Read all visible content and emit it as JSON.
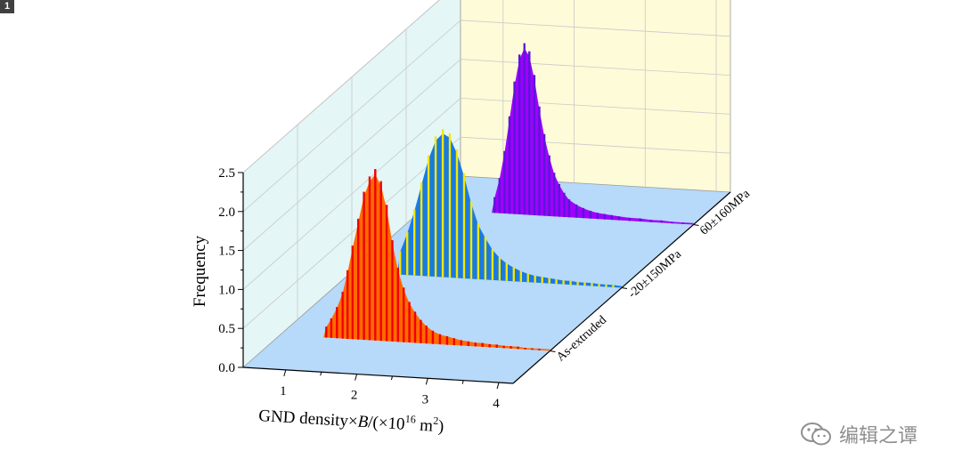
{
  "badge": "1",
  "watermark": {
    "text": "编辑之谭",
    "icon": "wechat-icon"
  },
  "chart_data": {
    "type": "3d-waterfall-histogram",
    "title": "",
    "xlabel": {
      "main": "GND density×",
      "italic": "B",
      "mid": "/(×10",
      "sup1": "16",
      "after": " m",
      "sup2": "2",
      "close": ")"
    },
    "ylabel": "Frequency",
    "xlim": [
      0.4,
      4.2
    ],
    "ylim": [
      0,
      2.5
    ],
    "x_ticks": [
      "1",
      "2",
      "3",
      "4"
    ],
    "y_ticks": [
      "0.0",
      "0.5",
      "1.0",
      "1.5",
      "2.0",
      "2.5"
    ],
    "depth_labels": [
      "As-extruded",
      "-20±150MPa",
      "60±160MPa"
    ],
    "colors": {
      "wall_back": "#fdfbd8",
      "wall_left": "#e4f6f6",
      "floor": "#b7d9fa",
      "grid": "#c9c9c9"
    },
    "series": [
      {
        "name": "As-extruded",
        "bar_color": "#f00000",
        "fill_color": "#ff6a00",
        "bars": [
          {
            "x": 1.05,
            "y": 0.14
          },
          {
            "x": 1.12,
            "y": 0.25
          },
          {
            "x": 1.2,
            "y": 0.4
          },
          {
            "x": 1.28,
            "y": 0.6
          },
          {
            "x": 1.35,
            "y": 0.88
          },
          {
            "x": 1.42,
            "y": 1.2
          },
          {
            "x": 1.5,
            "y": 1.55
          },
          {
            "x": 1.58,
            "y": 1.9
          },
          {
            "x": 1.66,
            "y": 2.1
          },
          {
            "x": 1.74,
            "y": 2.2
          },
          {
            "x": 1.82,
            "y": 2.05
          },
          {
            "x": 1.9,
            "y": 1.75
          },
          {
            "x": 1.98,
            "y": 1.3
          },
          {
            "x": 2.06,
            "y": 0.95
          },
          {
            "x": 2.14,
            "y": 0.7
          },
          {
            "x": 2.22,
            "y": 0.52
          },
          {
            "x": 2.3,
            "y": 0.4
          },
          {
            "x": 2.38,
            "y": 0.3
          },
          {
            "x": 2.46,
            "y": 0.23
          },
          {
            "x": 2.55,
            "y": 0.17
          },
          {
            "x": 2.65,
            "y": 0.13
          },
          {
            "x": 2.75,
            "y": 0.11
          },
          {
            "x": 2.85,
            "y": 0.09
          },
          {
            "x": 2.95,
            "y": 0.07
          },
          {
            "x": 3.05,
            "y": 0.06
          },
          {
            "x": 3.15,
            "y": 0.05
          },
          {
            "x": 3.25,
            "y": 0.05
          },
          {
            "x": 3.35,
            "y": 0.04
          },
          {
            "x": 3.45,
            "y": 0.04
          },
          {
            "x": 3.55,
            "y": 0.03
          },
          {
            "x": 3.65,
            "y": 0.03
          },
          {
            "x": 3.75,
            "y": 0.03
          },
          {
            "x": 3.85,
            "y": 0.02
          },
          {
            "x": 3.95,
            "y": 0.02
          },
          {
            "x": 4.05,
            "y": 0.02
          }
        ]
      },
      {
        "name": "-20±150MPa",
        "bar_color": "#f5e800",
        "fill_color": "#1a7ae0",
        "bars": [
          {
            "x": 1.08,
            "y": 0.3
          },
          {
            "x": 1.18,
            "y": 0.55
          },
          {
            "x": 1.28,
            "y": 0.85
          },
          {
            "x": 1.38,
            "y": 1.2
          },
          {
            "x": 1.48,
            "y": 1.55
          },
          {
            "x": 1.58,
            "y": 1.8
          },
          {
            "x": 1.68,
            "y": 1.9
          },
          {
            "x": 1.78,
            "y": 1.85
          },
          {
            "x": 1.88,
            "y": 1.65
          },
          {
            "x": 1.98,
            "y": 1.35
          },
          {
            "x": 2.08,
            "y": 1.0
          },
          {
            "x": 2.18,
            "y": 0.72
          },
          {
            "x": 2.28,
            "y": 0.55
          },
          {
            "x": 2.38,
            "y": 0.4
          },
          {
            "x": 2.48,
            "y": 0.3
          },
          {
            "x": 2.58,
            "y": 0.23
          },
          {
            "x": 2.68,
            "y": 0.18
          },
          {
            "x": 2.78,
            "y": 0.14
          },
          {
            "x": 2.88,
            "y": 0.11
          },
          {
            "x": 2.98,
            "y": 0.09
          },
          {
            "x": 3.08,
            "y": 0.08
          },
          {
            "x": 3.18,
            "y": 0.07
          },
          {
            "x": 3.28,
            "y": 0.06
          },
          {
            "x": 3.38,
            "y": 0.05
          },
          {
            "x": 3.48,
            "y": 0.05
          },
          {
            "x": 3.58,
            "y": 0.04
          },
          {
            "x": 3.68,
            "y": 0.04
          },
          {
            "x": 3.78,
            "y": 0.04
          },
          {
            "x": 3.88,
            "y": 0.03
          },
          {
            "x": 3.98,
            "y": 0.03
          },
          {
            "x": 4.08,
            "y": 0.03
          }
        ]
      },
      {
        "name": "60±160MPa",
        "bar_color": "#5a16d8",
        "fill_color": "#a100ff",
        "bars": [
          {
            "x": 1.4,
            "y": 0.2
          },
          {
            "x": 1.47,
            "y": 0.45
          },
          {
            "x": 1.54,
            "y": 0.8
          },
          {
            "x": 1.61,
            "y": 1.25
          },
          {
            "x": 1.68,
            "y": 1.7
          },
          {
            "x": 1.75,
            "y": 2.05
          },
          {
            "x": 1.82,
            "y": 2.2
          },
          {
            "x": 1.89,
            "y": 2.1
          },
          {
            "x": 1.96,
            "y": 1.8
          },
          {
            "x": 2.03,
            "y": 1.4
          },
          {
            "x": 2.1,
            "y": 1.05
          },
          {
            "x": 2.17,
            "y": 0.78
          },
          {
            "x": 2.24,
            "y": 0.56
          },
          {
            "x": 2.31,
            "y": 0.42
          },
          {
            "x": 2.38,
            "y": 0.31
          },
          {
            "x": 2.45,
            "y": 0.23
          },
          {
            "x": 2.55,
            "y": 0.17
          },
          {
            "x": 2.65,
            "y": 0.13
          },
          {
            "x": 2.75,
            "y": 0.1
          },
          {
            "x": 2.85,
            "y": 0.08
          },
          {
            "x": 2.95,
            "y": 0.07
          },
          {
            "x": 3.05,
            "y": 0.06
          },
          {
            "x": 3.15,
            "y": 0.05
          },
          {
            "x": 3.3,
            "y": 0.04
          },
          {
            "x": 3.45,
            "y": 0.04
          },
          {
            "x": 3.6,
            "y": 0.03
          },
          {
            "x": 3.75,
            "y": 0.03
          },
          {
            "x": 3.9,
            "y": 0.02
          },
          {
            "x": 4.05,
            "y": 0.02
          }
        ]
      }
    ]
  }
}
